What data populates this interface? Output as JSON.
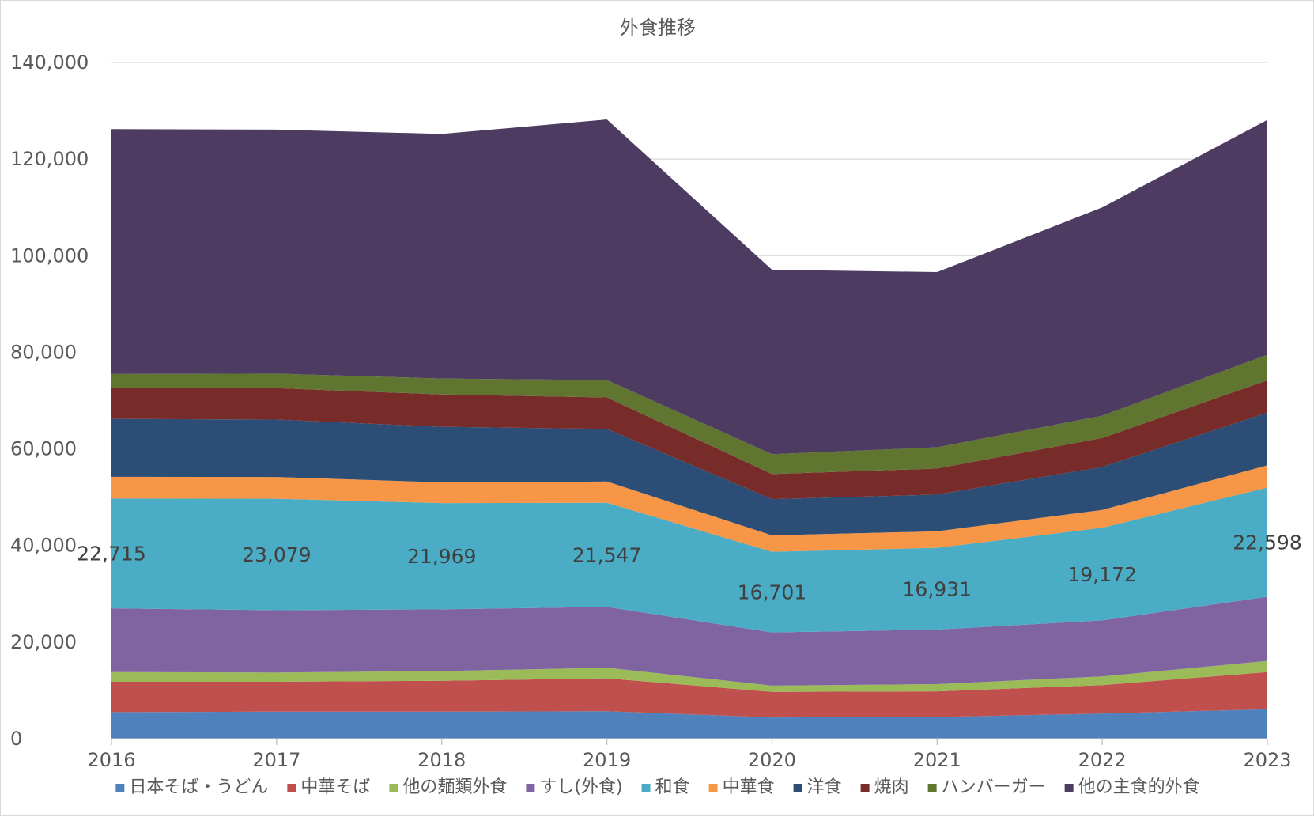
{
  "chart_data": {
    "type": "area",
    "stacked": true,
    "title": "外食推移",
    "xlabel": "",
    "ylabel": "",
    "ylim": [
      0,
      140000
    ],
    "ytick_step": 20000,
    "grid": true,
    "legend_position": "bottom",
    "categories": [
      "2016",
      "2017",
      "2018",
      "2019",
      "2020",
      "2021",
      "2022",
      "2023"
    ],
    "series": [
      {
        "name": "日本そば・うどん",
        "color": "#4f81bd",
        "values": [
          5500,
          5600,
          5600,
          5700,
          4400,
          4500,
          5200,
          6100
        ]
      },
      {
        "name": "中華そば",
        "color": "#c0504d",
        "values": [
          6300,
          6200,
          6400,
          6800,
          5300,
          5300,
          5900,
          7700
        ]
      },
      {
        "name": "他の麺類外食",
        "color": "#9bbb59",
        "values": [
          2000,
          1900,
          2000,
          2200,
          1300,
          1500,
          1800,
          2300
        ]
      },
      {
        "name": "すし(外食)",
        "color": "#8064a2",
        "values": [
          13200,
          12900,
          12800,
          12600,
          11000,
          11300,
          11600,
          13300
        ]
      },
      {
        "name": "和食",
        "color": "#4bacc6",
        "values": [
          22715,
          23079,
          21969,
          21547,
          16701,
          16931,
          19172,
          22598
        ]
      },
      {
        "name": "中華食",
        "color": "#f79646",
        "values": [
          4500,
          4500,
          4300,
          4400,
          3400,
          3400,
          3700,
          4600
        ]
      },
      {
        "name": "洋食",
        "color": "#2c4d75",
        "values": [
          12000,
          11900,
          11500,
          10900,
          7500,
          7600,
          8900,
          10900
        ]
      },
      {
        "name": "焼肉",
        "color": "#772c2a",
        "values": [
          6400,
          6500,
          6700,
          6500,
          5200,
          5400,
          6000,
          6700
        ]
      },
      {
        "name": "ハンバーガー",
        "color": "#5f7530",
        "values": [
          2900,
          3000,
          3300,
          3600,
          4100,
          4400,
          4600,
          5300
        ]
      },
      {
        "name": "他の主食的外食",
        "color": "#4d3b62",
        "values": [
          50685,
          50521,
          50631,
          53953,
          38199,
          36269,
          43128,
          48602
        ]
      }
    ],
    "data_labels": {
      "series": "和食",
      "values": [
        "22,715",
        "23,079",
        "21,969",
        "21,547",
        "16,701",
        "16,931",
        "19,172",
        "22,598"
      ]
    },
    "ytick_labels": [
      "0",
      "20,000",
      "40,000",
      "60,000",
      "80,000",
      "100,000",
      "120,000",
      "140,000"
    ]
  }
}
